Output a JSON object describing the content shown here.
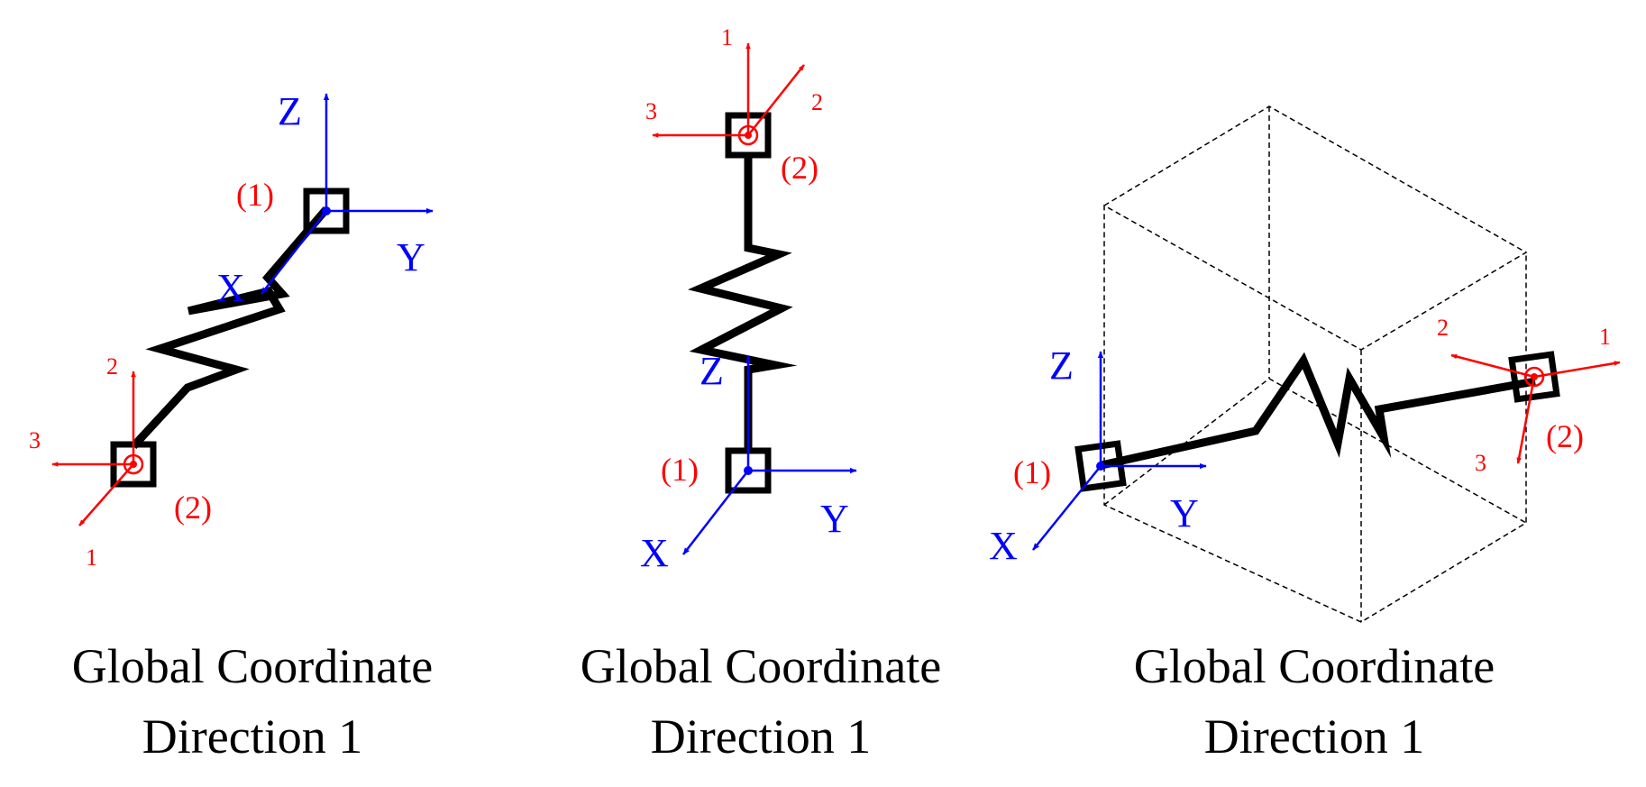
{
  "colors": {
    "global_axes": "#0000ff",
    "local_axes": "#ff0000",
    "element": "#000000",
    "bounding_box": "#000000"
  },
  "panels": [
    {
      "caption": {
        "line1": "Global Coordinate",
        "line2": "Direction 1"
      },
      "global_axes": {
        "x": "X",
        "y": "Y",
        "z": "Z"
      },
      "local_axes": {
        "a1": "1",
        "a2": "2",
        "a3": "3"
      },
      "nodes": {
        "i": "(1)",
        "j": "(2)"
      }
    },
    {
      "caption": {
        "line1": "Global Coordinate",
        "line2": "Direction 1"
      },
      "global_axes": {
        "x": "X",
        "y": "Y",
        "z": "Z"
      },
      "local_axes": {
        "a1": "1",
        "a2": "2",
        "a3": "3"
      },
      "nodes": {
        "i": "(1)",
        "j": "(2)"
      }
    },
    {
      "caption": {
        "line1": "Global Coordinate",
        "line2": "Direction 1"
      },
      "global_axes": {
        "x": "X",
        "y": "Y",
        "z": "Z"
      },
      "local_axes": {
        "a1": "1",
        "a2": "2",
        "a3": "3"
      },
      "nodes": {
        "i": "(1)",
        "j": "(2)"
      }
    }
  ]
}
